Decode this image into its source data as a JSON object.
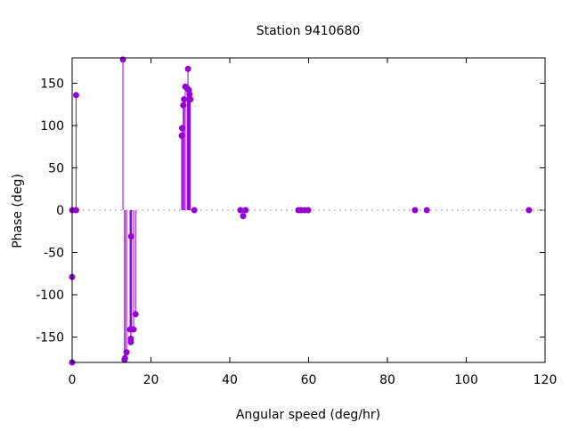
{
  "chart_data": {
    "type": "impulse-scatter",
    "title": "Station 9410680",
    "xlabel": "Angular speed (deg/hr)",
    "ylabel": "Phase (deg)",
    "xlim": [
      0,
      120
    ],
    "ylim": [
      -180,
      180
    ],
    "xticks": [
      0,
      20,
      40,
      60,
      80,
      100,
      120
    ],
    "yticks": [
      -150,
      -100,
      -50,
      0,
      50,
      100,
      150
    ],
    "zero_line": "dotted",
    "grid": false,
    "color": "#9400d3",
    "points": [
      [
        0.0,
        -180
      ],
      [
        0.0,
        -79
      ],
      [
        0.04,
        0
      ],
      [
        1.0,
        0
      ],
      [
        1.0,
        136
      ],
      [
        12.9,
        178
      ],
      [
        13.3,
        -177
      ],
      [
        13.4,
        -175
      ],
      [
        13.8,
        -168
      ],
      [
        14.7,
        -141
      ],
      [
        14.9,
        -152
      ],
      [
        14.9,
        -156
      ],
      [
        14.96,
        -31
      ],
      [
        15.1,
        -141
      ],
      [
        15.6,
        -141
      ],
      [
        16.1,
        -123
      ],
      [
        27.8,
        88
      ],
      [
        27.9,
        97
      ],
      [
        28.2,
        124
      ],
      [
        28.4,
        131
      ],
      [
        28.7,
        146
      ],
      [
        29.4,
        167
      ],
      [
        29.2,
        144
      ],
      [
        29.6,
        142
      ],
      [
        29.8,
        137
      ],
      [
        30.0,
        131
      ],
      [
        31.0,
        0
      ],
      [
        42.7,
        0
      ],
      [
        43.4,
        -7
      ],
      [
        44.0,
        0
      ],
      [
        57.4,
        0
      ],
      [
        58.1,
        0
      ],
      [
        59.0,
        0
      ],
      [
        59.9,
        0
      ],
      [
        87.0,
        0
      ],
      [
        90.0,
        0
      ],
      [
        115.9,
        0
      ]
    ]
  }
}
